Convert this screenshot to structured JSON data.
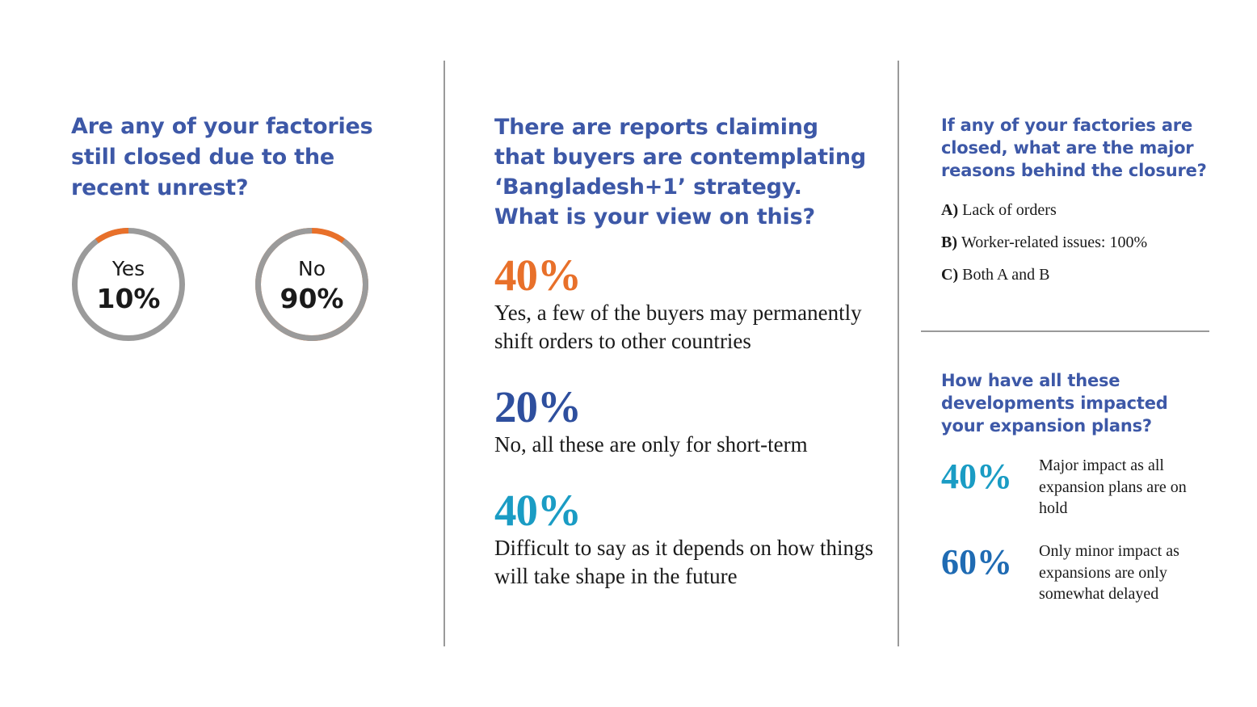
{
  "colors": {
    "question": "#3d58a7",
    "orange": "#e8702a",
    "gray": "#9b9b9b",
    "navy": "#2e4f9e",
    "teal": "#1a9cc4",
    "blue": "#1f6bb3"
  },
  "panel1": {
    "question": "Are any of your factories still closed due to the recent unrest?"
  },
  "panel2": {
    "question": "There are reports claiming that buyers are contemplating ‘Bangladesh+1’ strategy. What is your view on this?",
    "stats": [
      {
        "pct": "40%",
        "text": "Yes, a few of the buyers may permanently shift orders to other countries"
      },
      {
        "pct": "20%",
        "text": "No, all these are only for short-term"
      },
      {
        "pct": "40%",
        "text": "Difficult to say as it depends on how things will take shape in the future"
      }
    ]
  },
  "panel3": {
    "question": "If any of your factories are closed, what are the major reasons behind the closure?",
    "options": [
      {
        "letter": "A)",
        "text": "Lack of orders"
      },
      {
        "letter": "B)",
        "text": "Worker-related issues: 100%"
      },
      {
        "letter": "C)",
        "text": "Both A and B"
      }
    ]
  },
  "panel4": {
    "question": "How have all these developments impacted your expansion plans?",
    "items": [
      {
        "pct": "40%",
        "text": "Major impact as all expansion plans are on hold"
      },
      {
        "pct": "60%",
        "text": "Only minor impact as expansions are only somewhat delayed"
      }
    ]
  },
  "chart_data": [
    {
      "type": "pie",
      "categories": [
        "Yes",
        "No"
      ],
      "values": [
        10,
        90
      ],
      "labels": [
        "10%",
        "90%"
      ]
    },
    {
      "type": "bar",
      "categories": [
        "Yes, a few of the buyers may permanently shift orders to other countries",
        "No, all these are only for short-term",
        "Difficult to say as it depends on how things will take shape in the future"
      ],
      "values": [
        40,
        20,
        40
      ]
    },
    {
      "type": "bar",
      "categories": [
        "Major impact as all expansion plans are on hold",
        "Only minor impact as expansions are only somewhat delayed"
      ],
      "values": [
        40,
        60
      ]
    }
  ]
}
